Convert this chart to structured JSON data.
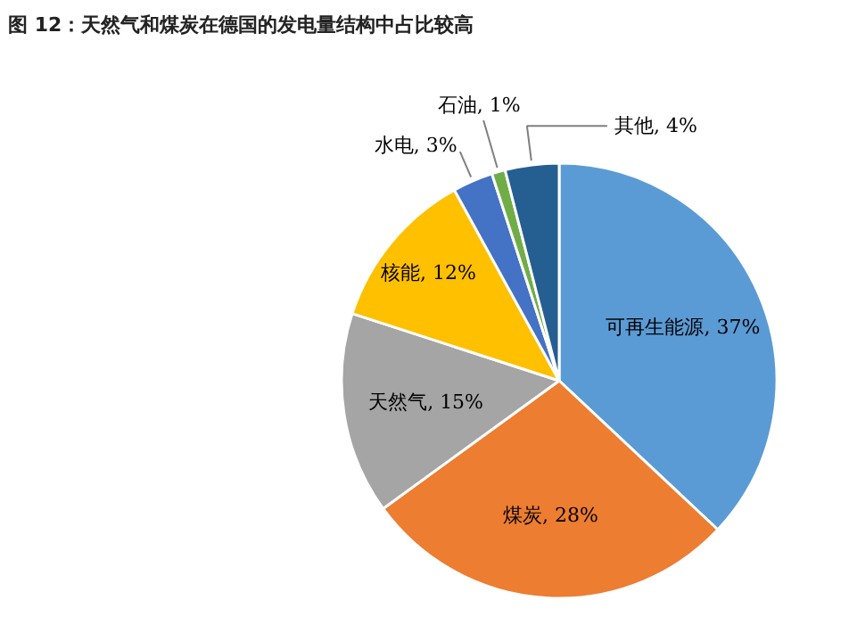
{
  "chart_data": {
    "type": "pie",
    "title": "图 12：天然气和煤炭在德国的发电量结构中占比较高",
    "categories": [
      "可再生能源",
      "煤炭",
      "天然气",
      "核能",
      "水电",
      "石油",
      "其他"
    ],
    "values": [
      37,
      28,
      15,
      12,
      3,
      1,
      4
    ],
    "colors": [
      "#5b9bd5",
      "#ed7d31",
      "#a5a5a5",
      "#ffc000",
      "#4472c4",
      "#70ad47",
      "#255e91"
    ],
    "value_labels": [
      "37%",
      "28%",
      "15%",
      "12%",
      "3%",
      "1%",
      "4%"
    ]
  }
}
